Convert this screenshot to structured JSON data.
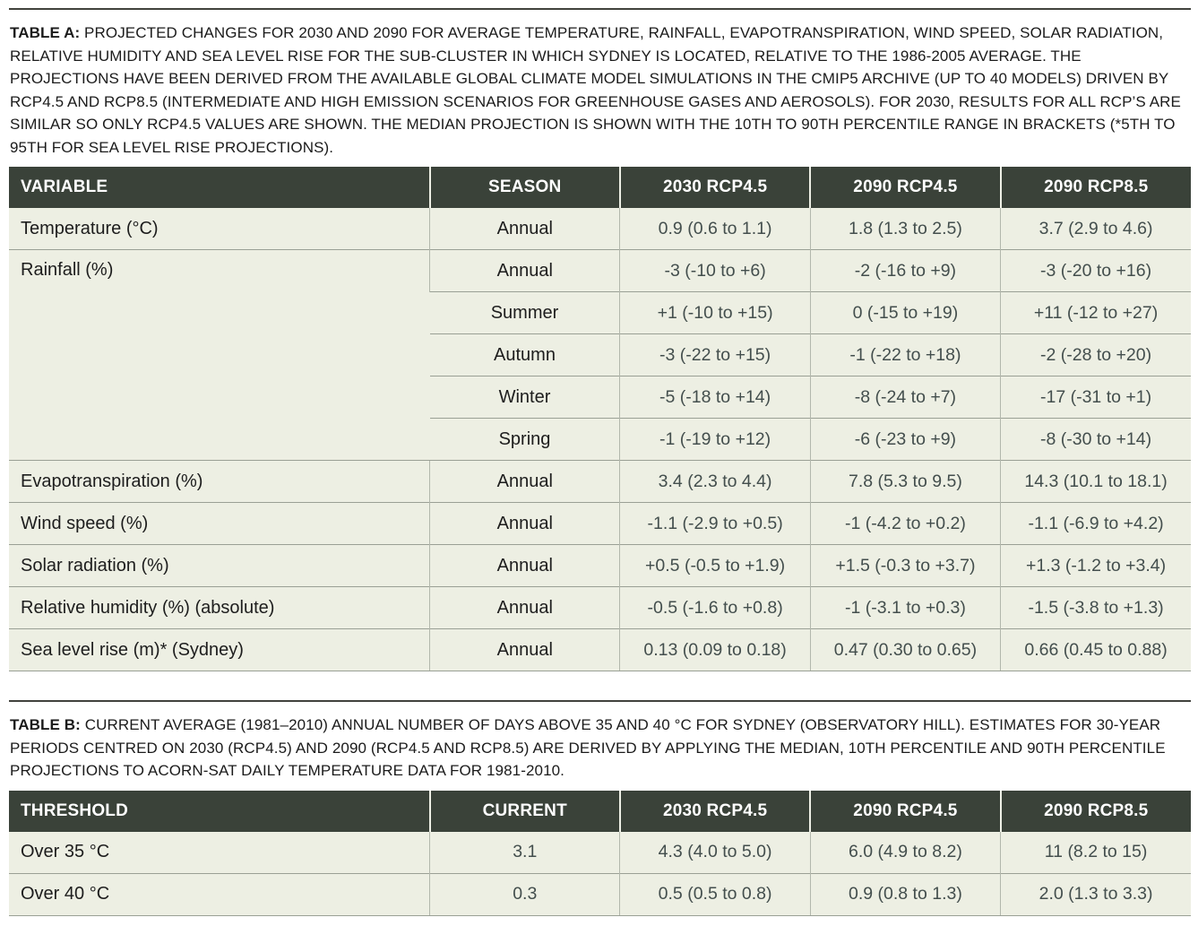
{
  "tableA": {
    "caption_label": "TABLE A:",
    "caption_text": " PROJECTED CHANGES FOR 2030 AND 2090 FOR AVERAGE TEMPERATURE, RAINFALL, EVAPOTRANSPIRATION, WIND SPEED, SOLAR RADIATION, RELATIVE HUMIDITY AND SEA LEVEL RISE FOR THE SUB-CLUSTER IN WHICH SYDNEY IS LOCATED, RELATIVE TO THE 1986-2005 AVERAGE. THE PROJECTIONS HAVE BEEN DERIVED FROM THE AVAILABLE GLOBAL CLIMATE MODEL SIMULATIONS IN THE CMIP5 ARCHIVE (UP TO 40 MODELS) DRIVEN BY RCP4.5 AND RCP8.5 (INTERMEDIATE AND HIGH EMISSION SCENARIOS FOR GREENHOUSE GASES AND AEROSOLS). FOR 2030, RESULTS FOR ALL RCP’S ARE SIMILAR SO ONLY RCP4.5 VALUES ARE SHOWN. THE MEDIAN PROJECTION IS SHOWN WITH THE 10TH TO 90TH PERCENTILE RANGE IN BRACKETS (*5TH TO 95TH FOR SEA LEVEL RISE PROJECTIONS).",
    "headers": [
      "VARIABLE",
      "SEASON",
      "2030 RCP4.5",
      "2090 RCP4.5",
      "2090 RCP8.5"
    ],
    "rows": [
      {
        "variable": "Temperature (°C)",
        "season": "Annual",
        "v2030_rcp45": "0.9 (0.6 to 1.1)",
        "v2090_rcp45": "1.8 (1.3 to 2.5)",
        "v2090_rcp85": "3.7 (2.9 to 4.6)"
      },
      {
        "variable": "Rainfall (%)",
        "season": "Annual",
        "v2030_rcp45": "-3 (-10 to +6)",
        "v2090_rcp45": "-2 (-16 to +9)",
        "v2090_rcp85": "-3 (-20 to +16)"
      },
      {
        "season": "Summer",
        "v2030_rcp45": "+1 (-10 to +15)",
        "v2090_rcp45": "0 (-15 to +19)",
        "v2090_rcp85": "+11 (-12 to +27)"
      },
      {
        "season": "Autumn",
        "v2030_rcp45": "-3 (-22 to +15)",
        "v2090_rcp45": "-1 (-22 to +18)",
        "v2090_rcp85": "-2 (-28 to +20)"
      },
      {
        "season": "Winter",
        "v2030_rcp45": "-5 (-18 to +14)",
        "v2090_rcp45": "-8 (-24 to +7)",
        "v2090_rcp85": "-17 (-31 to +1)"
      },
      {
        "season": "Spring",
        "v2030_rcp45": "-1 (-19 to +12)",
        "v2090_rcp45": "-6 (-23 to +9)",
        "v2090_rcp85": "-8 (-30 to +14)"
      },
      {
        "variable": "Evapotranspiration (%)",
        "season": "Annual",
        "v2030_rcp45": "3.4 (2.3 to 4.4)",
        "v2090_rcp45": "7.8 (5.3 to 9.5)",
        "v2090_rcp85": "14.3 (10.1 to 18.1)"
      },
      {
        "variable": "Wind speed (%)",
        "season": "Annual",
        "v2030_rcp45": "-1.1 (-2.9 to +0.5)",
        "v2090_rcp45": "-1 (-4.2 to +0.2)",
        "v2090_rcp85": "-1.1 (-6.9 to +4.2)"
      },
      {
        "variable": "Solar radiation (%)",
        "season": "Annual",
        "v2030_rcp45": "+0.5 (-0.5 to +1.9)",
        "v2090_rcp45": "+1.5 (-0.3 to +3.7)",
        "v2090_rcp85": "+1.3 (-1.2 to +3.4)"
      },
      {
        "variable": "Relative humidity (%) (absolute)",
        "season": "Annual",
        "v2030_rcp45": "-0.5 (-1.6 to +0.8)",
        "v2090_rcp45": "-1 (-3.1 to +0.3)",
        "v2090_rcp85": "-1.5 (-3.8 to +1.3)"
      },
      {
        "variable": "Sea level rise (m)* (Sydney)",
        "season": "Annual",
        "v2030_rcp45": "0.13 (0.09 to 0.18)",
        "v2090_rcp45": "0.47 (0.30 to 0.65)",
        "v2090_rcp85": "0.66 (0.45 to 0.88)"
      }
    ]
  },
  "tableB": {
    "caption_label": "TABLE B:",
    "caption_text": " CURRENT AVERAGE (1981–2010) ANNUAL NUMBER OF DAYS ABOVE 35 AND 40 °C FOR SYDNEY (OBSERVATORY HILL). ESTIMATES FOR 30-YEAR PERIODS CENTRED ON 2030 (RCP4.5) AND 2090 (RCP4.5 AND RCP8.5) ARE DERIVED BY APPLYING THE MEDIAN, 10TH PERCENTILE AND 90TH PERCENTILE PROJECTIONS TO ACORN-SAT DAILY TEMPERATURE DATA FOR 1981-2010.",
    "headers": [
      "THRESHOLD",
      "CURRENT",
      "2030 RCP4.5",
      "2090 RCP4.5",
      "2090 RCP8.5"
    ],
    "rows": [
      {
        "threshold": "Over 35 °C",
        "current": "3.1",
        "v2030_rcp45": "4.3 (4.0 to 5.0)",
        "v2090_rcp45": "6.0 (4.9 to 8.2)",
        "v2090_rcp85": "11 (8.2 to 15)"
      },
      {
        "threshold": "Over 40 °C",
        "current": "0.3",
        "v2030_rcp45": "0.5 (0.5 to 0.8)",
        "v2090_rcp45": "0.9 (0.8 to 1.3)",
        "v2090_rcp85": "2.0 (1.3 to 3.3)"
      }
    ]
  },
  "colors": {
    "header_bg": "#3a4239",
    "header_text": "#ffffff",
    "row_bg": "#edefe3",
    "row_divider": "#9aa095",
    "column_divider": "#b2b7ac",
    "caption_text": "#1b1b1b",
    "rule": "#41423d"
  }
}
